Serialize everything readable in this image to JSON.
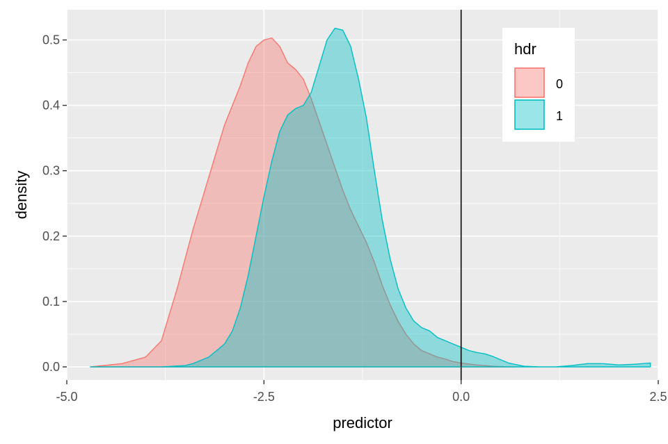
{
  "chart_data": {
    "type": "area",
    "xlabel": "predictor",
    "ylabel": "density",
    "xlim": [
      -5.0,
      2.5
    ],
    "ylim": [
      0,
      0.5
    ],
    "x_ticks": [
      -5.0,
      -2.5,
      0.0,
      2.5
    ],
    "x_tick_labels": [
      "-5.0",
      "-2.5",
      "0.0",
      "2.5"
    ],
    "y_ticks": [
      0.0,
      0.1,
      0.2,
      0.3,
      0.4,
      0.5
    ],
    "y_tick_labels": [
      "0.0",
      "0.1",
      "0.2",
      "0.3",
      "0.4",
      "0.5"
    ],
    "grid": true,
    "vline_x": 0.0,
    "legend": {
      "title": "hdr",
      "placement": "top-right"
    },
    "series": [
      {
        "name": "0",
        "color": "#F8766D",
        "x": [
          -4.7,
          -4.3,
          -4.0,
          -3.8,
          -3.7,
          -3.6,
          -3.5,
          -3.4,
          -3.3,
          -3.2,
          -3.1,
          -3.0,
          -2.9,
          -2.8,
          -2.7,
          -2.6,
          -2.5,
          -2.4,
          -2.3,
          -2.2,
          -2.1,
          -2.0,
          -1.9,
          -1.8,
          -1.7,
          -1.6,
          -1.5,
          -1.4,
          -1.3,
          -1.2,
          -1.1,
          -1.0,
          -0.9,
          -0.8,
          -0.7,
          -0.6,
          -0.5,
          -0.4,
          -0.3,
          -0.2,
          -0.1,
          0.0,
          0.2,
          0.4,
          0.6,
          0.7
        ],
        "y": [
          0.0,
          0.005,
          0.015,
          0.04,
          0.08,
          0.12,
          0.165,
          0.21,
          0.25,
          0.29,
          0.33,
          0.37,
          0.4,
          0.43,
          0.465,
          0.49,
          0.5,
          0.503,
          0.49,
          0.465,
          0.455,
          0.44,
          0.41,
          0.375,
          0.34,
          0.305,
          0.27,
          0.24,
          0.215,
          0.19,
          0.16,
          0.125,
          0.095,
          0.07,
          0.05,
          0.035,
          0.025,
          0.02,
          0.015,
          0.012,
          0.008,
          0.006,
          0.003,
          0.001,
          0.0,
          0.0
        ]
      },
      {
        "name": "1",
        "color": "#00BFC4",
        "x": [
          -4.7,
          -4.2,
          -3.8,
          -3.5,
          -3.4,
          -3.2,
          -3.0,
          -2.9,
          -2.8,
          -2.7,
          -2.6,
          -2.5,
          -2.4,
          -2.3,
          -2.2,
          -2.1,
          -2.0,
          -1.9,
          -1.8,
          -1.7,
          -1.6,
          -1.5,
          -1.4,
          -1.3,
          -1.2,
          -1.1,
          -1.0,
          -0.9,
          -0.8,
          -0.7,
          -0.6,
          -0.5,
          -0.4,
          -0.3,
          -0.2,
          -0.1,
          0.0,
          0.1,
          0.2,
          0.3,
          0.4,
          0.6,
          0.8,
          1.0,
          1.2,
          1.4,
          1.6,
          1.8,
          2.0,
          2.2,
          2.4
        ],
        "y": [
          0.0,
          0.0,
          0.0,
          0.002,
          0.005,
          0.015,
          0.035,
          0.055,
          0.09,
          0.14,
          0.2,
          0.26,
          0.315,
          0.36,
          0.385,
          0.395,
          0.4,
          0.42,
          0.46,
          0.5,
          0.518,
          0.515,
          0.49,
          0.44,
          0.38,
          0.3,
          0.225,
          0.165,
          0.12,
          0.09,
          0.07,
          0.06,
          0.055,
          0.045,
          0.04,
          0.035,
          0.03,
          0.025,
          0.022,
          0.02,
          0.016,
          0.006,
          0.001,
          0.0,
          0.0,
          0.002,
          0.005,
          0.005,
          0.003,
          0.004,
          0.006
        ]
      }
    ]
  }
}
